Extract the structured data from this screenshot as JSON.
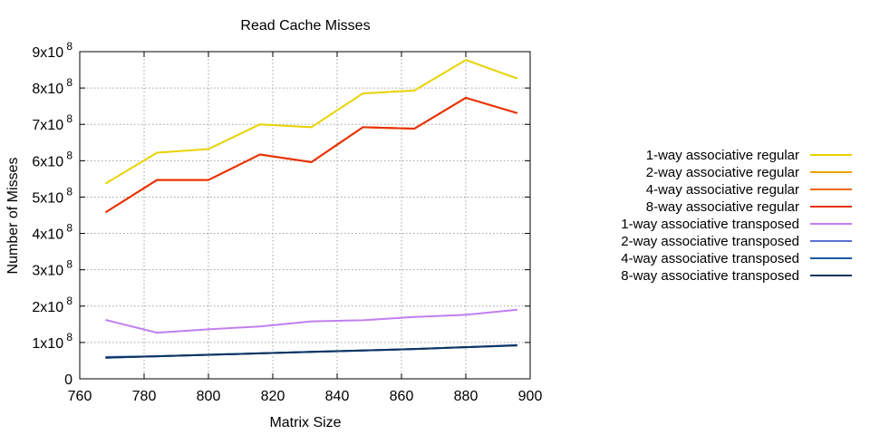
{
  "chart_data": {
    "type": "line",
    "title": "Read Cache Misses",
    "xlabel": "Matrix Size",
    "ylabel": "Number of Misses",
    "xlim": [
      760,
      900
    ],
    "ylim": [
      0,
      900000000
    ],
    "x_ticks": [
      760,
      780,
      800,
      820,
      840,
      860,
      880,
      900
    ],
    "y_ticks": [
      {
        "value": 0,
        "mantissa": "0",
        "exponent": ""
      },
      {
        "value": 100000000,
        "mantissa": "1x10",
        "exponent": "8"
      },
      {
        "value": 200000000,
        "mantissa": "2x10",
        "exponent": "8"
      },
      {
        "value": 300000000,
        "mantissa": "3x10",
        "exponent": "8"
      },
      {
        "value": 400000000,
        "mantissa": "4x10",
        "exponent": "8"
      },
      {
        "value": 500000000,
        "mantissa": "5x10",
        "exponent": "8"
      },
      {
        "value": 600000000,
        "mantissa": "6x10",
        "exponent": "8"
      },
      {
        "value": 700000000,
        "mantissa": "7x10",
        "exponent": "8"
      },
      {
        "value": 800000000,
        "mantissa": "8x10",
        "exponent": "8"
      },
      {
        "value": 900000000,
        "mantissa": "9x10",
        "exponent": "8"
      }
    ],
    "grid": true,
    "legend_position": "right",
    "x": [
      768,
      784,
      800,
      816,
      832,
      848,
      864,
      880,
      896
    ],
    "series": [
      {
        "name": "1-way associative regular",
        "color": "#e8d200",
        "values": [
          537000000,
          622000000,
          632000000,
          700000000,
          692000000,
          785000000,
          793000000,
          877000000,
          826000000
        ]
      },
      {
        "name": "2-way associative regular",
        "color": "#f0a000",
        "values": [
          458000000,
          547000000,
          547000000,
          617000000,
          596000000,
          692000000,
          688000000,
          773000000,
          731000000
        ]
      },
      {
        "name": "4-way associative regular",
        "color": "#f06a00",
        "values": [
          458000000,
          547000000,
          547000000,
          617000000,
          596000000,
          692000000,
          688000000,
          773000000,
          731000000
        ]
      },
      {
        "name": "8-way associative regular",
        "color": "#e8300a",
        "values": [
          458000000,
          547000000,
          547000000,
          617000000,
          596000000,
          692000000,
          688000000,
          773000000,
          731000000
        ]
      },
      {
        "name": "1-way associative transposed",
        "color": "#c080f0",
        "values": [
          162000000,
          127000000,
          136000000,
          144000000,
          158000000,
          161000000,
          170000000,
          176000000,
          190000000
        ]
      },
      {
        "name": "2-way associative transposed",
        "color": "#5a6fd0",
        "values": [
          60000000,
          62000000,
          66000000,
          70000000,
          74000000,
          78000000,
          82000000,
          87000000,
          93000000
        ]
      },
      {
        "name": "4-way associative transposed",
        "color": "#1c58a0",
        "values": [
          58000000,
          62000000,
          66000000,
          70000000,
          74000000,
          78000000,
          82000000,
          87000000,
          92000000
        ]
      },
      {
        "name": "8-way associative transposed",
        "color": "#0c3560",
        "values": [
          58000000,
          62000000,
          66000000,
          70000000,
          74000000,
          78000000,
          82000000,
          87000000,
          92000000
        ]
      }
    ]
  }
}
